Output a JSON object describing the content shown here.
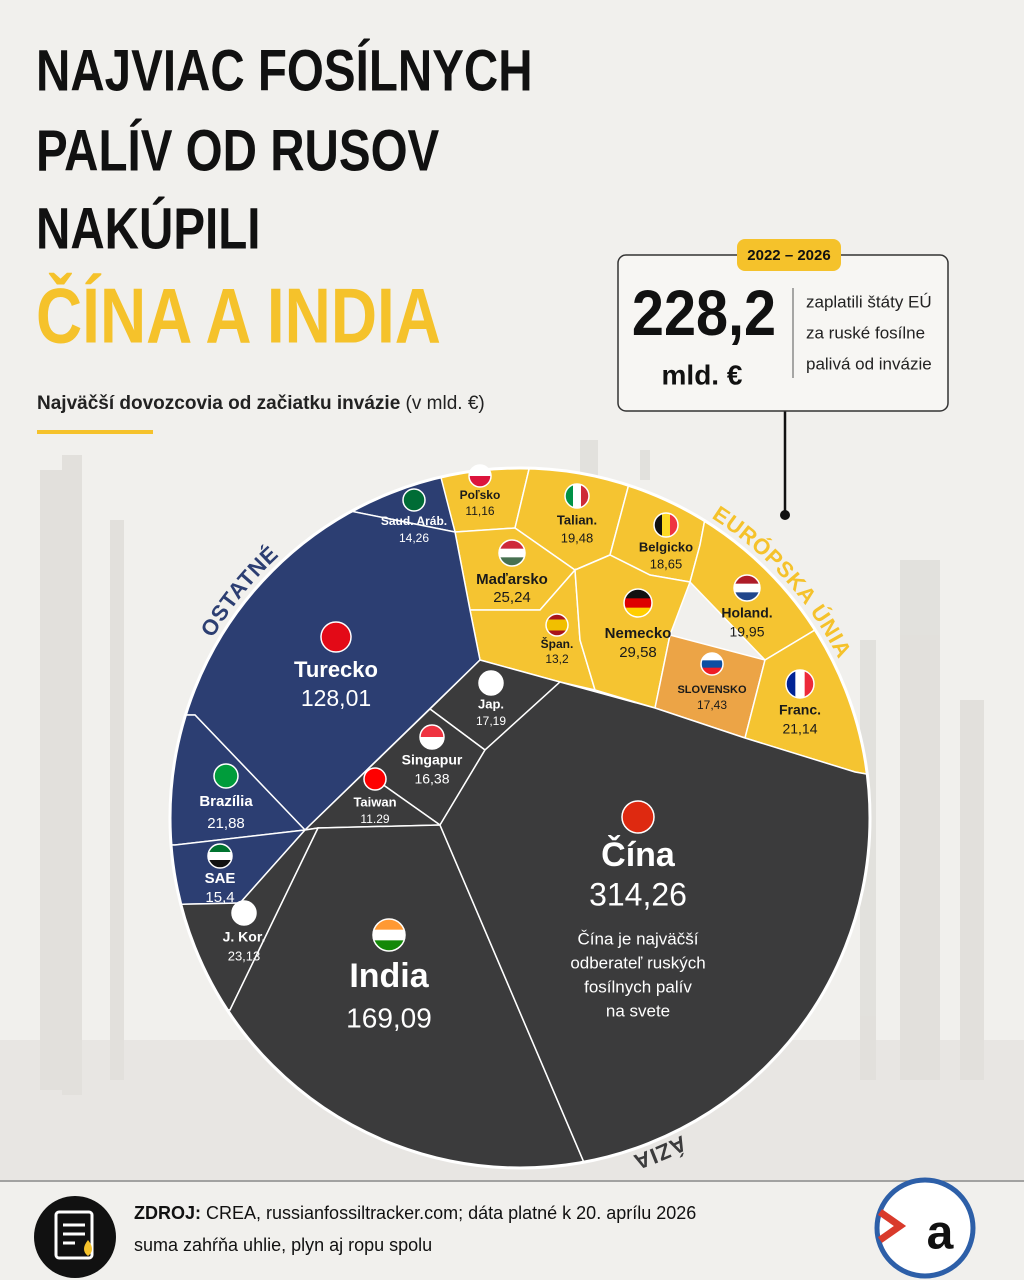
{
  "chart_data": {
    "type": "voronoi-treemap",
    "title": [
      "NAJVIAC FOSÍLNYCH",
      "PALÍV OD RUSOV",
      "NAKÚPILI",
      "ČÍNA A INDIA"
    ],
    "subtitle": "Najväčší dovozcovia od začiatku invázie",
    "unit": "(v mld. €)",
    "groups": [
      {
        "name": "EURÓPSKA ÚNIA",
        "color": "#f5c431",
        "colors": [
          "#f5c431",
          "#f5c431",
          "#f5c431",
          "#f5c431",
          "#f5c431",
          "#f5c431",
          "#f5c431",
          "#eca446",
          "#f5c431"
        ],
        "categories": [
          "Poľsko",
          "Talian.",
          "Belgicko",
          "Holand.",
          "Maďarsko",
          "Špan.",
          "Nemecko",
          "SLOVENSKO",
          "Franc."
        ],
        "values": [
          11.16,
          19.48,
          18.65,
          19.95,
          25.24,
          13.2,
          29.58,
          17.43,
          21.14
        ],
        "value_labels": [
          "11,16",
          "19,48",
          "18,65",
          "19,95",
          "25,24",
          "13,2",
          "29,58",
          "17,43",
          "21,14"
        ]
      },
      {
        "name": "OSTATNÉ",
        "color": "#2c3e72",
        "categories": [
          "Saud. Aráb.",
          "Turecko",
          "Brazília",
          "SAE"
        ],
        "values": [
          14.26,
          128.01,
          21.88,
          15.4
        ],
        "value_labels": [
          "14,26",
          "128,01",
          "21,88",
          "15,4"
        ]
      },
      {
        "name": "ÁZIA",
        "color": "#3b3b3c",
        "categories": [
          "Jap.",
          "Singapur",
          "Taiwan",
          "J. Kor.",
          "India",
          "Čína"
        ],
        "values": [
          17.19,
          16.38,
          11.29,
          23.13,
          169.09,
          314.26
        ],
        "value_labels": [
          "17,19",
          "16,38",
          "11.29",
          "23,13",
          "169,09",
          "314,26"
        ]
      }
    ],
    "note": [
      "Čína je najväčší",
      "odberateľ ruských",
      "fosílnych palív",
      "na svete"
    ],
    "callout": {
      "period": "2022 – 2026",
      "value": "228,2",
      "unit": "mld. €",
      "text": [
        "zaplatili štáty EÚ",
        "za ruské fosílne",
        "palivá od invázie"
      ]
    }
  },
  "footer": {
    "source_label": "ZDROJ:",
    "source": "CREA, russianfossiltracker.com; dáta platné k 20. aprílu 2026",
    "note": "suma zahŕňa uhlie, plyn aj ropu spolu"
  }
}
